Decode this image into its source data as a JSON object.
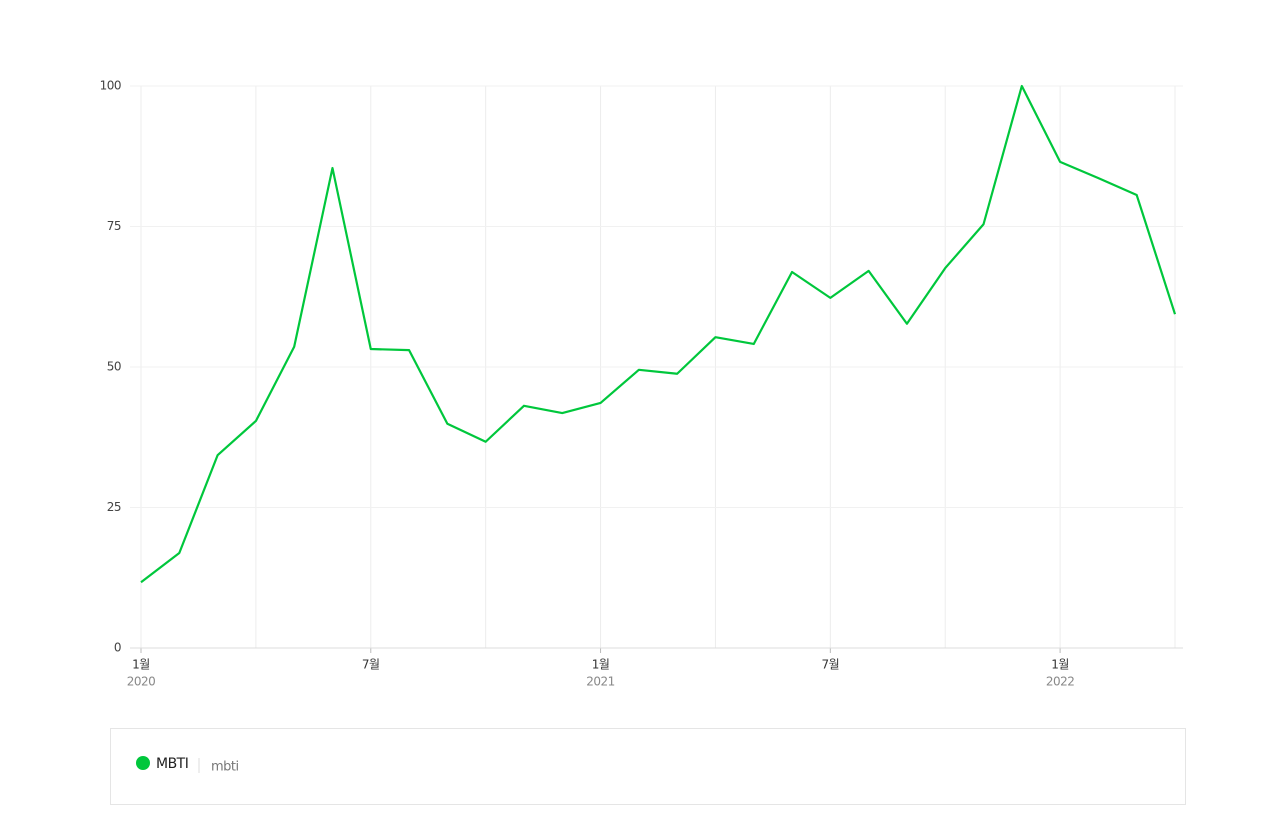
{
  "chart_data": {
    "type": "line",
    "categories": [
      "1월",
      null,
      null,
      null,
      null,
      null,
      "7월",
      null,
      null,
      null,
      null,
      null,
      "1월",
      null,
      null,
      null,
      null,
      null,
      "7월",
      null,
      null,
      null,
      null,
      null,
      "1월",
      null,
      null,
      null
    ],
    "category_years": [
      "2020",
      null,
      null,
      null,
      null,
      null,
      null,
      null,
      null,
      null,
      null,
      null,
      "2021",
      null,
      null,
      null,
      null,
      null,
      null,
      null,
      null,
      null,
      null,
      null,
      "2022",
      null,
      null,
      null
    ],
    "series": [
      {
        "name": "MBTI",
        "keyword": "mbti",
        "color": "#00c73c",
        "values": [
          11.7,
          16.9,
          34.3,
          40.4,
          53.6,
          85.4,
          53.2,
          53.0,
          39.9,
          36.7,
          43.1,
          41.8,
          43.6,
          49.5,
          48.8,
          55.3,
          54.1,
          66.9,
          62.3,
          67.1,
          57.7,
          67.6,
          75.4,
          100,
          86.5,
          83.6,
          80.6,
          59.4
        ]
      }
    ],
    "ylim": [
      0,
      100
    ],
    "yticks": [
      0,
      25,
      50,
      75,
      100
    ],
    "grid": true
  }
}
